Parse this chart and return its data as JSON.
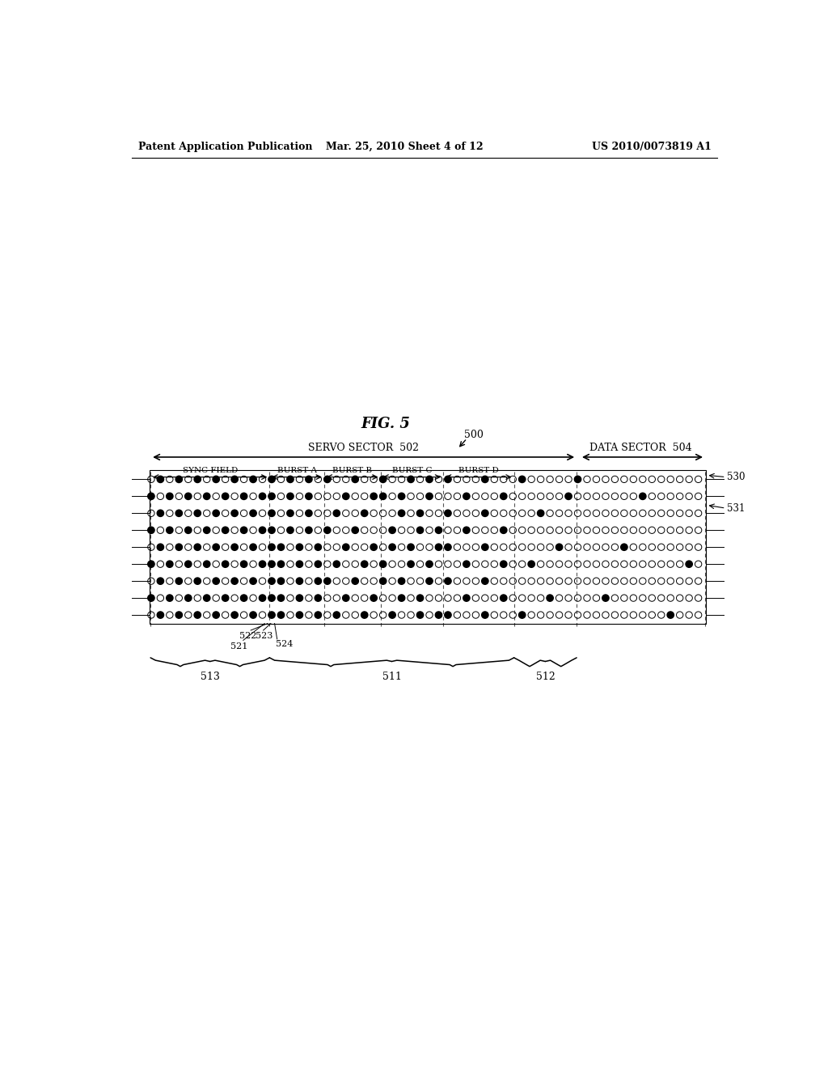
{
  "patent_header": "Patent Application Publication",
  "patent_date": "Mar. 25, 2010 Sheet 4 of 12",
  "patent_number": "US 2010/0073819 A1",
  "fig_label": "FIG. 5",
  "ref_500": "500",
  "ref_502": "502",
  "ref_504": "504",
  "ref_511": "511",
  "ref_512": "512",
  "ref_513": "513",
  "ref_521": "521",
  "ref_522": "522",
  "ref_523": "523",
  "ref_524": "524",
  "ref_530": "530",
  "ref_531": "531",
  "label_servo": "SERVO SECTOR",
  "label_data": "DATA SECTOR",
  "label_sync": "SYNC FIELD",
  "label_burst_a": "BURST A",
  "label_burst_b": "BURST B",
  "label_burst_c": "BURST C",
  "label_burst_d": "BURST D",
  "bg_color": "#ffffff",
  "ink_color": "#000000"
}
